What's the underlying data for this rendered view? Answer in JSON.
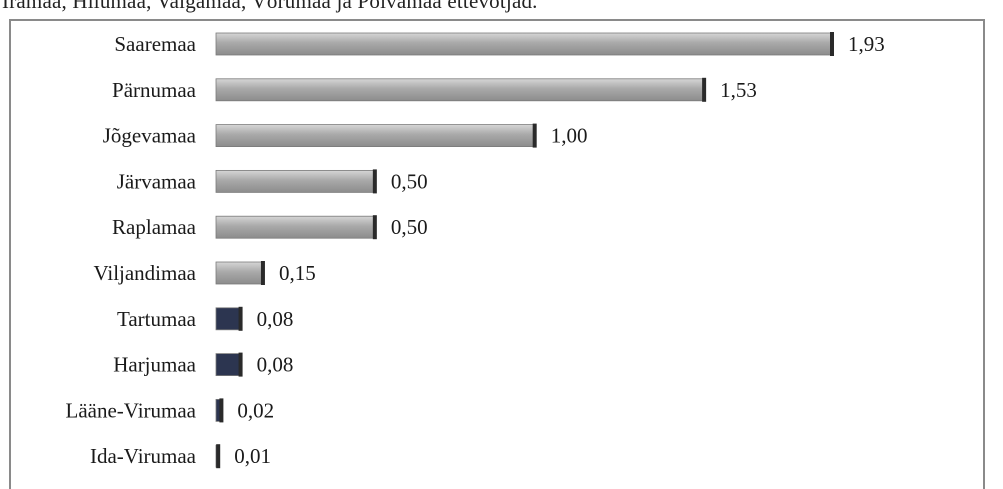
{
  "caption": "Iramaa, Hiiumaa, Valgamaa, Võrumaa ja Põlvamaa ettevõtjad.",
  "chart_data": {
    "type": "bar",
    "orientation": "horizontal",
    "categories": [
      "Saaremaa",
      "Pärnumaa",
      "Jõgevamaa",
      "Järvamaa",
      "Raplamaa",
      "Viljandimaa",
      "Tartumaa",
      "Harjumaa",
      "Lääne-Virumaa",
      "Ida-Virumaa"
    ],
    "values": [
      1.93,
      1.53,
      1.0,
      0.5,
      0.5,
      0.15,
      0.08,
      0.08,
      0.02,
      0.01
    ],
    "value_labels": [
      "1,93",
      "1,53",
      "1,00",
      "0,50",
      "0,50",
      "0,15",
      "0,08",
      "0,08",
      "0,02",
      "0,01"
    ],
    "xlim": [
      0,
      1.93
    ],
    "grid": false,
    "legend": "none",
    "colors": {
      "bar": "#a9a9a9",
      "bar_highlight": "#d6d6d6",
      "bar_shadow": "#5a5a5a",
      "dark_bar": "#2c3550"
    }
  }
}
